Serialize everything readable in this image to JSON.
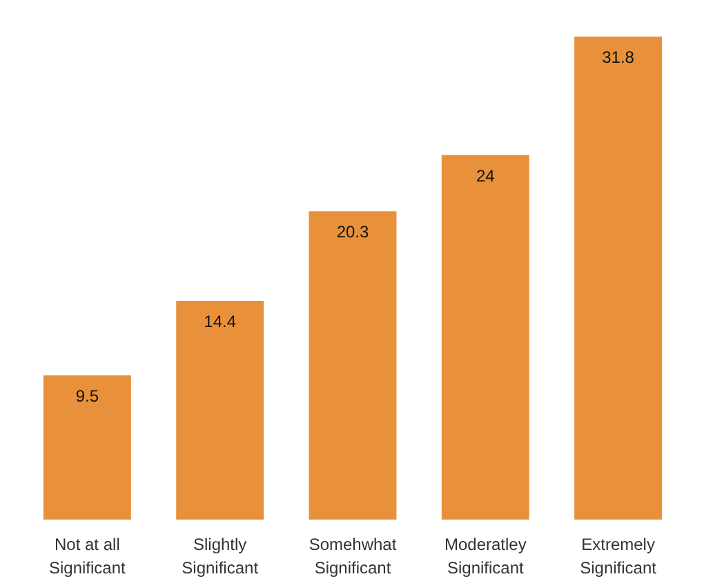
{
  "chart_data": {
    "type": "bar",
    "categories": [
      "Not at all Significant",
      "Slightly Significant",
      "Somehwhat Significant",
      "Moderatley Significant",
      "Extremely Significant"
    ],
    "values": [
      9.5,
      14.4,
      20.3,
      24,
      31.8
    ],
    "color": "#e8913a",
    "data_labels": true
  }
}
